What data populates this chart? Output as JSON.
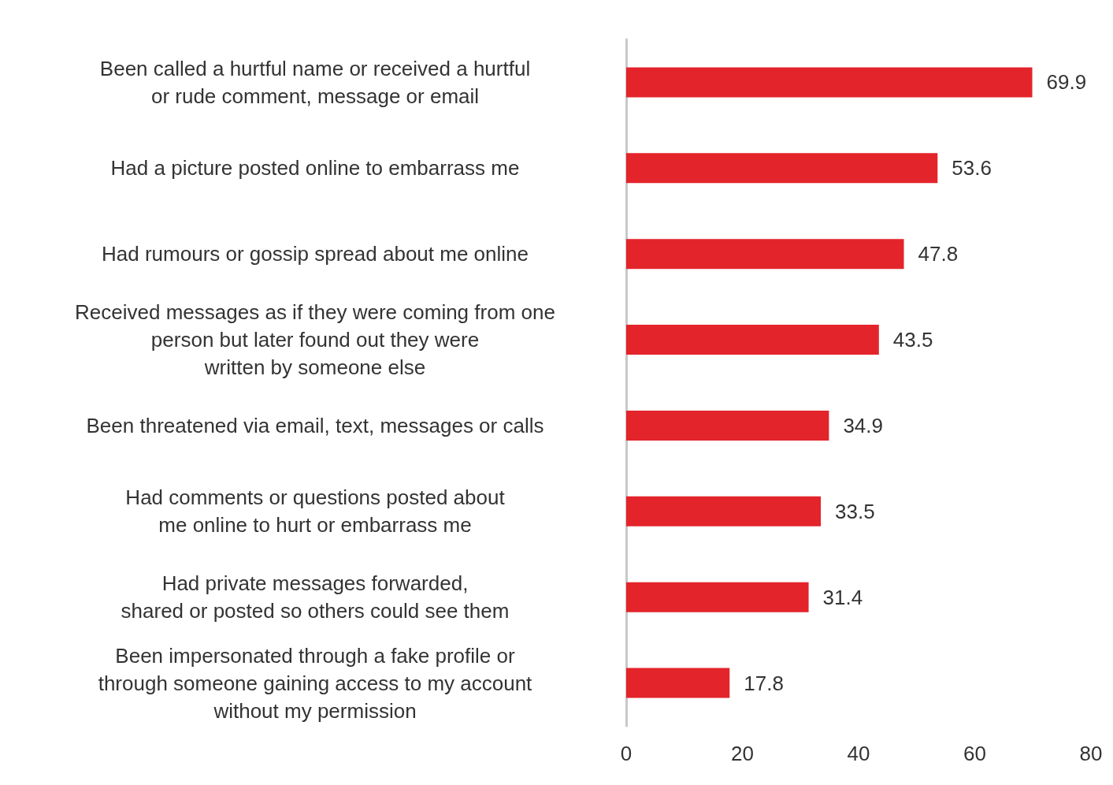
{
  "chart_data": {
    "type": "bar",
    "orientation": "horizontal",
    "categories": [
      "Been called a hurtful name or received a hurtful\nor rude comment, message or email",
      "Had a picture posted online to embarrass me",
      "Had rumours or gossip spread about me online",
      "Received messages as if they were coming from one\nperson but later found out they were\nwritten by someone else",
      "Been threatened via email, text, messages or calls",
      "Had comments or questions posted about\nme online to hurt or embarrass me",
      "Had private messages forwarded,\nshared or posted so others could see them",
      "Been impersonated through a fake profile or\nthrough someone gaining access to my account\nwithout my permission"
    ],
    "values": [
      69.9,
      53.6,
      47.8,
      43.5,
      34.9,
      33.5,
      31.4,
      17.8
    ],
    "color": "#e3242b",
    "xlim": [
      0,
      80
    ],
    "xticks": [
      0,
      20,
      40,
      60,
      80
    ],
    "grid": false,
    "data_labels": true
  }
}
